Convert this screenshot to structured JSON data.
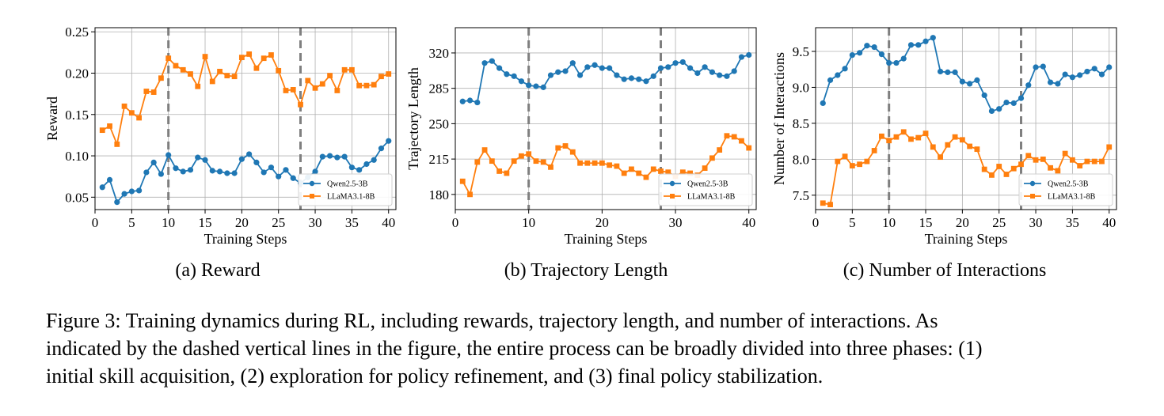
{
  "figure": {
    "caption_lines": [
      "Figure 3: Training dynamics during RL, including rewards, trajectory length, and number of interactions.  As",
      "indicated by the dashed vertical lines in the figure, the entire process can be broadly divided into three phases: (1)",
      "initial skill acquisition, (2) exploration for policy refinement, and (3) final policy stabilization."
    ],
    "subcaptions": [
      "(a) Reward",
      "(b) Trajectory Length",
      "(c) Number of Interactions"
    ]
  },
  "colors": {
    "qwen": "#1f77b4",
    "llama": "#ff7f0e",
    "grid": "#b0b0b0",
    "phase_line": "#7f7f7f"
  },
  "chart_data": [
    {
      "type": "line",
      "xlabel": "Training Steps",
      "ylabel": "Reward",
      "xlim": [
        0,
        41
      ],
      "ylim": [
        0.035,
        0.255
      ],
      "xticks": [
        0,
        5,
        10,
        15,
        20,
        25,
        30,
        35,
        40
      ],
      "yticks": [
        0.05,
        0.1,
        0.15,
        0.2,
        0.25
      ],
      "ytick_labels": [
        "0.05",
        "0.10",
        "0.15",
        "0.20",
        "0.25"
      ],
      "phase_boundaries": [
        10,
        28
      ],
      "grid": true,
      "legend": "bottom-right",
      "x": [
        1,
        2,
        3,
        4,
        5,
        6,
        7,
        8,
        9,
        10,
        11,
        12,
        13,
        14,
        15,
        16,
        17,
        18,
        19,
        20,
        21,
        22,
        23,
        24,
        25,
        26,
        27,
        28,
        29,
        30,
        31,
        32,
        33,
        34,
        35,
        36,
        37,
        38,
        39,
        40
      ],
      "series": [
        {
          "name": "Qwen2.5-3B",
          "marker": "circle",
          "values": [
            0.062,
            0.071,
            0.044,
            0.054,
            0.057,
            0.058,
            0.08,
            0.092,
            0.078,
            0.101,
            0.085,
            0.081,
            0.083,
            0.098,
            0.095,
            0.082,
            0.081,
            0.079,
            0.079,
            0.096,
            0.102,
            0.092,
            0.08,
            0.086,
            0.075,
            0.083,
            0.073,
            0.067,
            0.074,
            0.081,
            0.099,
            0.1,
            0.098,
            0.099,
            0.086,
            0.083,
            0.09,
            0.095,
            0.109,
            0.118
          ]
        },
        {
          "name": "LLaMA3.1-8B",
          "marker": "square",
          "values": [
            0.131,
            0.136,
            0.114,
            0.16,
            0.152,
            0.146,
            0.178,
            0.177,
            0.194,
            0.218,
            0.209,
            0.204,
            0.199,
            0.184,
            0.22,
            0.19,
            0.202,
            0.197,
            0.196,
            0.219,
            0.223,
            0.206,
            0.218,
            0.222,
            0.203,
            0.179,
            0.18,
            0.162,
            0.191,
            0.182,
            0.187,
            0.197,
            0.179,
            0.204,
            0.204,
            0.185,
            0.185,
            0.186,
            0.196,
            0.199
          ]
        }
      ]
    },
    {
      "type": "line",
      "xlabel": "Training Steps",
      "ylabel": "Trajectory Length",
      "xlim": [
        0,
        41
      ],
      "ylim": [
        165,
        345
      ],
      "xticks": [
        0,
        10,
        20,
        30,
        40
      ],
      "yticks": [
        180,
        215,
        250,
        285,
        320
      ],
      "ytick_labels": [
        "180",
        "215",
        "250",
        "285",
        "320"
      ],
      "phase_boundaries": [
        10,
        28
      ],
      "grid": true,
      "legend": "bottom-right",
      "x": [
        1,
        2,
        3,
        4,
        5,
        6,
        7,
        8,
        9,
        10,
        11,
        12,
        13,
        14,
        15,
        16,
        17,
        18,
        19,
        20,
        21,
        22,
        23,
        24,
        25,
        26,
        27,
        28,
        29,
        30,
        31,
        32,
        33,
        34,
        35,
        36,
        37,
        38,
        39,
        40
      ],
      "series": [
        {
          "name": "Qwen2.5-3B",
          "marker": "circle",
          "values": [
            272,
            273,
            271,
            310,
            312,
            305,
            299,
            297,
            292,
            288,
            287,
            286,
            298,
            301,
            302,
            310,
            298,
            306,
            308,
            305,
            305,
            298,
            294,
            295,
            294,
            292,
            297,
            305,
            306,
            310,
            311,
            305,
            300,
            306,
            301,
            298,
            297,
            302,
            316,
            318
          ]
        },
        {
          "name": "LLaMA3.1-8B",
          "marker": "square",
          "values": [
            193,
            180,
            212,
            224,
            213,
            203,
            201,
            213,
            218,
            220,
            213,
            212,
            207,
            226,
            228,
            222,
            211,
            211,
            211,
            211,
            209,
            208,
            201,
            205,
            201,
            197,
            205,
            203,
            202,
            198,
            202,
            201,
            199,
            206,
            216,
            224,
            238,
            237,
            233,
            226
          ]
        }
      ]
    },
    {
      "type": "line",
      "xlabel": "Training Steps",
      "ylabel": "Number of Interactions",
      "xlim": [
        0,
        41
      ],
      "ylim": [
        7.3,
        9.83
      ],
      "xticks": [
        0,
        5,
        10,
        15,
        20,
        25,
        30,
        35,
        40
      ],
      "yticks": [
        7.5,
        8.0,
        8.5,
        9.0,
        9.5
      ],
      "ytick_labels": [
        "7.5",
        "8.0",
        "8.5",
        "9.0",
        "9.5"
      ],
      "phase_boundaries": [
        10,
        28
      ],
      "grid": true,
      "legend": "bottom-right",
      "x": [
        1,
        2,
        3,
        4,
        5,
        6,
        7,
        8,
        9,
        10,
        11,
        12,
        13,
        14,
        15,
        16,
        17,
        18,
        19,
        20,
        21,
        22,
        23,
        24,
        25,
        26,
        27,
        28,
        29,
        30,
        31,
        32,
        33,
        34,
        35,
        36,
        37,
        38,
        39,
        40
      ],
      "series": [
        {
          "name": "Qwen2.5-3B",
          "marker": "circle",
          "values": [
            8.78,
            9.1,
            9.17,
            9.26,
            9.45,
            9.48,
            9.58,
            9.56,
            9.46,
            9.34,
            9.34,
            9.4,
            9.59,
            9.59,
            9.64,
            9.69,
            9.22,
            9.21,
            9.21,
            9.08,
            9.05,
            9.1,
            8.89,
            8.67,
            8.7,
            8.79,
            8.78,
            8.85,
            9.03,
            9.28,
            9.29,
            9.07,
            9.05,
            9.18,
            9.14,
            9.17,
            9.22,
            9.26,
            9.18,
            9.28
          ]
        },
        {
          "name": "LLaMA3.1-8B",
          "marker": "square",
          "values": [
            7.39,
            7.37,
            7.97,
            8.04,
            7.91,
            7.93,
            7.97,
            8.12,
            8.32,
            8.26,
            8.31,
            8.38,
            8.28,
            8.3,
            8.36,
            8.17,
            8.03,
            8.2,
            8.31,
            8.27,
            8.18,
            8.14,
            7.86,
            7.78,
            7.9,
            7.79,
            7.87,
            7.93,
            8.05,
            7.99,
            8.0,
            7.88,
            7.84,
            8.08,
            7.99,
            7.91,
            7.97,
            7.97,
            7.97,
            8.17
          ]
        }
      ]
    }
  ]
}
